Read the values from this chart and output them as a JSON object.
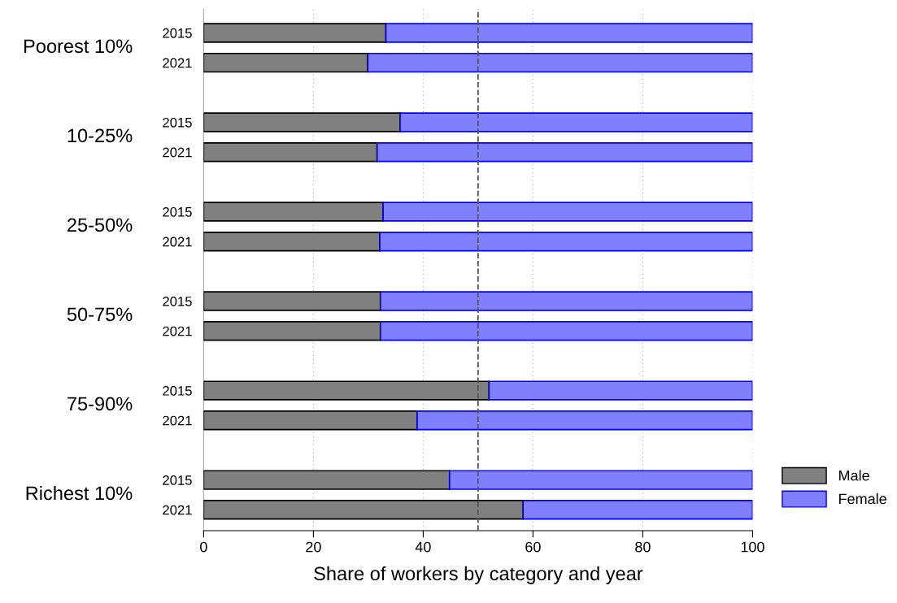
{
  "chart_data": {
    "type": "bar",
    "orientation": "horizontal",
    "stacked": true,
    "xlabel": "Share of workers by category and year",
    "categories": [
      "2015",
      "2021",
      null,
      "2015",
      "2021",
      null,
      "2015",
      "2021",
      null,
      "2015",
      "2021",
      null,
      "2015",
      "2021",
      null,
      "2015",
      "2021"
    ],
    "annotations": [
      "Poorest 10%",
      "10-25%",
      "25-50%",
      "50-75%",
      "75-90%",
      "Richest 10%"
    ],
    "series": [
      {
        "name": "Male",
        "color": "#808080",
        "values": [
          33.2,
          29.9,
          null,
          35.8,
          31.6,
          null,
          32.7,
          32.1,
          null,
          32.2,
          32.2,
          null,
          52.0,
          38.9,
          null,
          44.8,
          58.2
        ]
      },
      {
        "name": "Female",
        "color": "#8080ff",
        "values": [
          66.8,
          70.1,
          null,
          64.2,
          68.4,
          null,
          67.3,
          67.9,
          null,
          67.8,
          67.8,
          null,
          48.0,
          61.1,
          null,
          55.2,
          41.8
        ]
      }
    ],
    "xlim": [
      0,
      100
    ],
    "xticks": [
      0,
      20,
      40,
      60,
      80,
      100
    ],
    "ref_lines": [
      {
        "axis": "x",
        "value": 50,
        "color": "#555555",
        "line_style": "dashed"
      }
    ],
    "grid": "x",
    "legend": "right"
  }
}
